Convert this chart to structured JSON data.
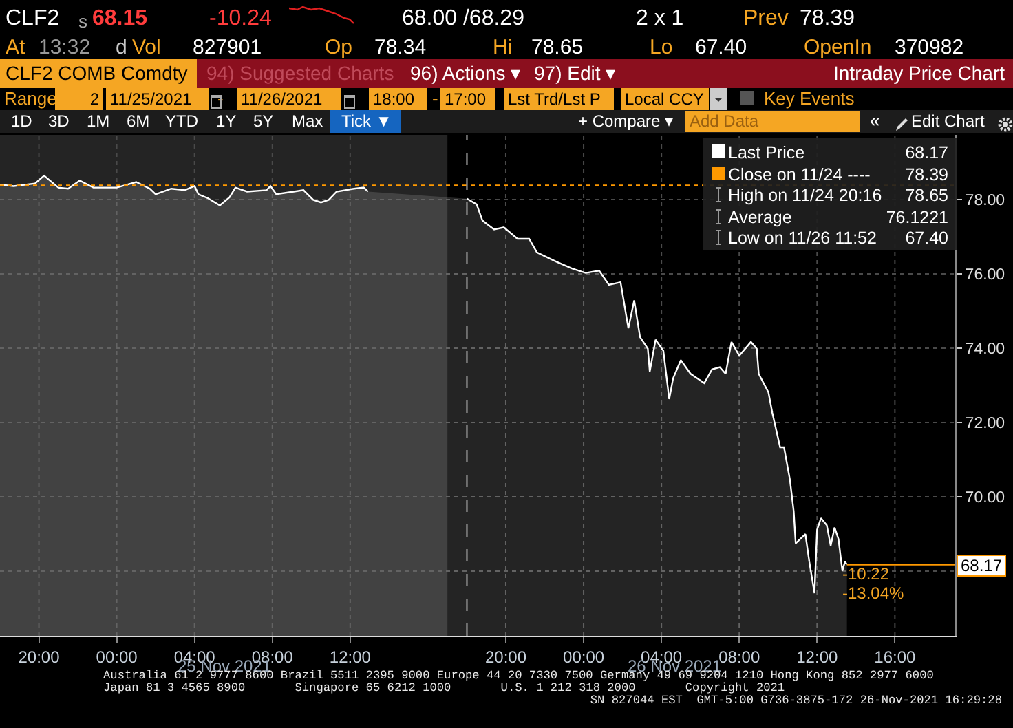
{
  "chart_data": {
    "type": "area",
    "title": "Intraday Price Chart",
    "x": [
      "2021-11-24T18:00",
      "2021-11-24T18:42",
      "2021-11-24T19:48",
      "2021-11-24T20:16",
      "2021-11-24T21:00",
      "2021-11-24T21:30",
      "2021-11-24T22:06",
      "2021-11-24T22:48",
      "2021-11-25T00:00",
      "2021-11-25T01:00",
      "2021-11-25T01:42",
      "2021-11-25T02:00",
      "2021-11-25T02:48",
      "2021-11-25T03:30",
      "2021-11-25T04:00",
      "2021-11-25T04:12",
      "2021-11-25T04:42",
      "2021-11-25T05:18",
      "2021-11-25T05:48",
      "2021-11-25T06:06",
      "2021-11-25T06:42",
      "2021-11-25T07:42",
      "2021-11-25T07:54",
      "2021-11-25T08:12",
      "2021-11-25T09:06",
      "2021-11-25T09:36",
      "2021-11-25T10:06",
      "2021-11-25T10:30",
      "2021-11-25T10:54",
      "2021-11-25T11:18",
      "2021-11-25T12:12",
      "2021-11-25T12:42",
      "2021-11-25T12:55",
      "2021-11-25T13:00",
      "2021-11-25T18:00",
      "2021-11-25T18:30",
      "2021-11-25T18:48",
      "2021-11-25T19:24",
      "2021-11-25T19:54",
      "2021-11-25T20:36",
      "2021-11-25T21:12",
      "2021-11-25T21:36",
      "2021-11-25T22:36",
      "2021-11-25T23:24",
      "2021-11-26T00:06",
      "2021-11-26T00:48",
      "2021-11-26T01:18",
      "2021-11-26T01:54",
      "2021-11-26T02:18",
      "2021-11-26T02:36",
      "2021-11-26T02:54",
      "2021-11-26T03:18",
      "2021-11-26T03:24",
      "2021-11-26T03:42",
      "2021-11-26T04:06",
      "2021-11-26T04:24",
      "2021-11-26T04:36",
      "2021-11-26T05:00",
      "2021-11-26T05:30",
      "2021-11-26T06:12",
      "2021-11-26T06:36",
      "2021-11-26T07:00",
      "2021-11-26T07:18",
      "2021-11-26T07:36",
      "2021-11-26T08:00",
      "2021-11-26T08:36",
      "2021-11-26T08:54",
      "2021-11-26T09:00",
      "2021-11-26T09:30",
      "2021-11-26T09:42",
      "2021-11-26T10:06",
      "2021-11-26T10:18",
      "2021-11-26T10:36",
      "2021-11-26T10:48",
      "2021-11-26T10:54",
      "2021-11-26T11:24",
      "2021-11-26T11:36",
      "2021-11-26T11:52",
      "2021-11-26T12:00",
      "2021-11-26T12:12",
      "2021-11-26T12:30",
      "2021-11-26T12:42",
      "2021-11-26T12:54",
      "2021-11-26T13:06",
      "2021-11-26T13:18",
      "2021-11-26T13:26",
      "2021-11-26T13:32"
    ],
    "series": [
      {
        "name": "Last Price",
        "color": "#ffffff",
        "values": [
          78.41,
          78.37,
          78.44,
          78.65,
          78.33,
          78.3,
          78.52,
          78.33,
          78.33,
          78.48,
          78.3,
          78.15,
          78.3,
          78.26,
          78.37,
          78.15,
          78.04,
          77.85,
          78.07,
          78.33,
          78.22,
          78.26,
          78.37,
          78.15,
          78.22,
          78.26,
          78.0,
          77.93,
          78.0,
          78.22,
          78.3,
          78.33,
          78.22,
          null,
          78.03,
          77.88,
          77.44,
          77.2,
          77.26,
          76.95,
          76.95,
          76.58,
          76.33,
          76.15,
          76.03,
          76.09,
          75.71,
          75.78,
          74.54,
          75.29,
          74.3,
          73.99,
          73.37,
          74.23,
          73.93,
          72.63,
          73.19,
          73.68,
          73.31,
          73.06,
          73.43,
          73.49,
          73.31,
          74.17,
          73.8,
          74.17,
          73.99,
          73.31,
          72.81,
          72.26,
          71.33,
          71.33,
          70.47,
          69.6,
          68.74,
          68.99,
          68.25,
          67.4,
          69.11,
          69.42,
          69.23,
          68.68,
          69.17,
          68.86,
          68.0,
          68.25,
          68.17
        ]
      }
    ],
    "xlim": [
      "2021-11-24T18:00",
      "2021-11-26T19:06"
    ],
    "xticks": [
      {
        "value": "2021-11-24T20:00",
        "label": "20:00"
      },
      {
        "value": "2021-11-25T00:00",
        "label": "00:00"
      },
      {
        "value": "2021-11-25T04:00",
        "label": "04:00"
      },
      {
        "value": "2021-11-25T08:00",
        "label": "08:00"
      },
      {
        "value": "2021-11-25T12:00",
        "label": "12:00"
      },
      {
        "value": "2021-11-25T20:00",
        "label": "20:00"
      },
      {
        "value": "2021-11-26T00:00",
        "label": "00:00"
      },
      {
        "value": "2021-11-26T04:00",
        "label": "04:00"
      },
      {
        "value": "2021-11-26T08:00",
        "label": "08:00"
      },
      {
        "value": "2021-11-26T12:00",
        "label": "12:00"
      },
      {
        "value": "2021-11-26T16:00",
        "label": "16:00"
      }
    ],
    "ylim": [
      66.25,
      79.75
    ],
    "yticks": [
      {
        "value": 68,
        "label": null
      },
      {
        "value": 70,
        "label": "70.00"
      },
      {
        "value": 72,
        "label": "72.00"
      },
      {
        "value": 74,
        "label": "74.00"
      },
      {
        "value": 76,
        "label": "76.00"
      },
      {
        "value": 78,
        "label": "78.00"
      }
    ],
    "grid": true,
    "legend": "top right",
    "bands": [
      {
        "axis": "x",
        "from": "2021-11-24T18:00",
        "to": "2021-11-25T17:00",
        "color": "#242424"
      }
    ],
    "ref_lines": [
      {
        "axis": "y",
        "value": 78.39,
        "label": "Close on 11/24 ----",
        "color": "#ff9900",
        "line_style": "dotted"
      },
      {
        "axis": "y",
        "value": 68.17,
        "label": "68.17",
        "color": "#ff9900",
        "line_style": "solid"
      },
      {
        "axis": "x",
        "value": "2021-11-25T18:00",
        "color": "#8a8a8a",
        "line_style": "dashed"
      }
    ],
    "annotations": [
      "CLF2",
      "s",
      "68.15",
      "-10.24",
      "68.00 /68.29",
      "2 x 1",
      "Prev",
      "78.39",
      "At",
      "13:32",
      "d",
      "Vol",
      "827901",
      "Op",
      "78.34",
      "Hi",
      "78.65",
      "Lo",
      "67.40",
      "OpenIn",
      "370982",
      "CLF2 COMB Comdty",
      "94) Suggested Charts",
      "96) Actions ▾",
      "97) Edit ▾",
      "Range",
      "2",
      "11/25/2021",
      "-",
      "11/26/2021",
      "18:00",
      "-",
      "17:00",
      "Lst Trd/Lst P",
      "Local CCY",
      "Key Events",
      "1D",
      "3D",
      "1M",
      "6M",
      "YTD",
      "1Y",
      "5Y",
      "Max",
      "Tick ▼",
      "+ Compare ▾",
      "Add Data",
      "«",
      "Edit Chart",
      "68.17",
      "High on 11/24 20:16",
      "78.65",
      "Average",
      "76.1221",
      "Low on 11/26 11:52",
      "67.40",
      "-10.22",
      "-13.04%",
      "25 Nov 2021",
      "26 Nov 2021",
      "Australia 61 2 9777 8600 Brazil 5511 2395 9000 Europe 44 20 7330 7500 Germany 49 69 9204 1210 Hong Kong 852 2977 6000",
      "Japan 81 3 4565 8900       Singapore 65 6212 1000       U.S. 1 212 318 2000       Copyright 2021",
      "SN 827044 EST  GMT-5:00 G736-3875-172 26-Nov-2021 16:29:28"
    ]
  }
}
